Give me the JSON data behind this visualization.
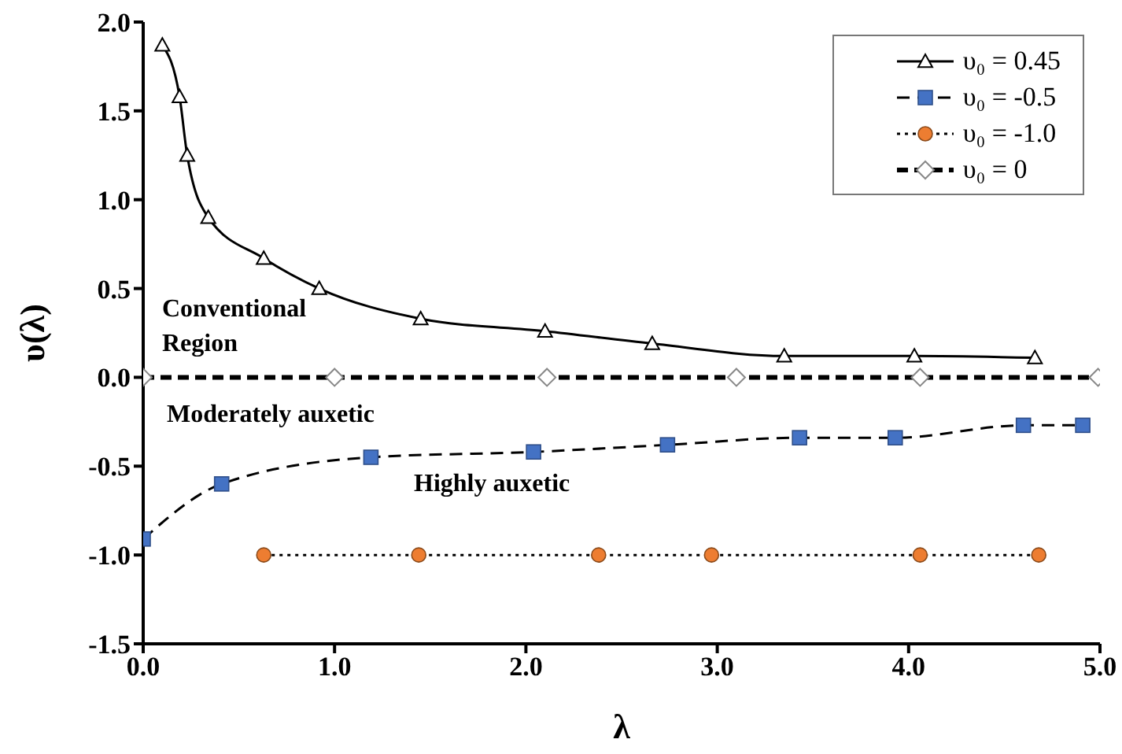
{
  "chart_data": {
    "type": "line",
    "xlabel": "λ",
    "ylabel": "υ(λ)",
    "xlim": [
      0,
      5
    ],
    "xticks": [
      {
        "value": 0,
        "label": "0.0"
      },
      {
        "value": 1,
        "label": "1.0"
      },
      {
        "value": 2,
        "label": "2.0"
      },
      {
        "value": 3,
        "label": "3.0"
      },
      {
        "value": 4,
        "label": "4.0"
      },
      {
        "value": 5,
        "label": "5.0"
      }
    ],
    "ylim": [
      -1.5,
      2
    ],
    "yticks": [
      {
        "value": -1.5,
        "label": "-1.5"
      },
      {
        "value": -1,
        "label": "-1.0"
      },
      {
        "value": -0.5,
        "label": "-0.5"
      },
      {
        "value": 0,
        "label": "0.0"
      },
      {
        "value": 0.5,
        "label": "0.5"
      },
      {
        "value": 1,
        "label": "1.0"
      },
      {
        "value": 1.5,
        "label": "1.5"
      },
      {
        "value": 2,
        "label": "2.0"
      }
    ],
    "grid": false,
    "legend": "top right",
    "annotations": [
      "Conventional Region",
      "Moderately auxetic",
      "Highly auxetic"
    ],
    "series": [
      {
        "name": "υ₀ = 0.45",
        "color": "#ffffff",
        "marker": "triangle",
        "line_style": "solid",
        "x": [
          0.1,
          0.19,
          0.23,
          0.34,
          0.63,
          0.92,
          1.45,
          2.1,
          2.66,
          3.35,
          4.03,
          4.66
        ],
        "values": [
          1.87,
          1.58,
          1.25,
          0.9,
          0.67,
          0.5,
          0.33,
          0.26,
          0.19,
          0.12,
          0.12,
          0.11
        ]
      },
      {
        "name": "υ₀ = -0.5",
        "color": "#4472c4",
        "marker": "square",
        "line_style": "dashed",
        "x": [
          0,
          0.41,
          1.19,
          2.04,
          2.74,
          3.43,
          3.93,
          4.6,
          4.91
        ],
        "values": [
          -0.91,
          -0.6,
          -0.45,
          -0.42,
          -0.38,
          -0.34,
          -0.34,
          -0.27,
          -0.27
        ]
      },
      {
        "name": "υ₀ = -1.0",
        "color": "#ed7d31",
        "marker": "circle",
        "line_style": "dotted",
        "x": [
          0.63,
          1.44,
          2.38,
          2.97,
          4.06,
          4.68
        ],
        "values": [
          -1,
          -1,
          -1,
          -1,
          -1,
          -1
        ]
      },
      {
        "name": "υ₀ = 0",
        "color": "#ffffff",
        "marker": "diamond",
        "line_style": "dashed",
        "x": [
          0,
          1,
          2.11,
          3.1,
          4.06,
          4.99
        ],
        "values": [
          0,
          0,
          0,
          0,
          0,
          0
        ]
      }
    ]
  }
}
